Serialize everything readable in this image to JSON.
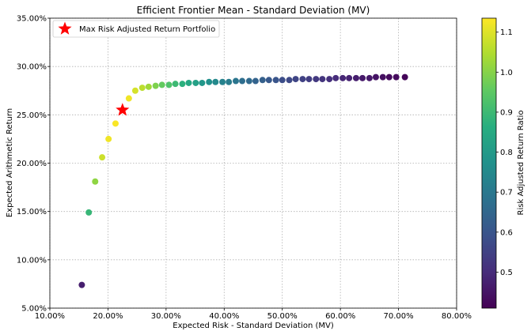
{
  "chart_data": {
    "type": "scatter",
    "title": "Efficient Frontier Mean - Standard Deviation (MV)",
    "xlabel": "Expected Risk - Standard Deviation (MV)",
    "ylabel": "Expected Arithmetic Return",
    "xlim": [
      0.1,
      0.8
    ],
    "ylim": [
      0.05,
      0.35
    ],
    "x_ticks": [
      "10.00%",
      "20.00%",
      "30.00%",
      "40.00%",
      "50.00%",
      "60.00%",
      "70.00%",
      "80.00%"
    ],
    "y_ticks": [
      "5.00%",
      "10.00%",
      "15.00%",
      "20.00%",
      "25.00%",
      "30.00%",
      "35.00%"
    ],
    "grid": true,
    "colorbar": {
      "label": "Risk Adjusted Return Ratio",
      "colormap": "viridis",
      "range": [
        0.41,
        1.135
      ],
      "ticks": [
        "0.5",
        "0.6",
        "0.7",
        "0.8",
        "0.9",
        "1.0",
        "1.1"
      ]
    },
    "legend": {
      "placement": "top-left",
      "label": "Max Risk Adjusted Return Portfolio"
    },
    "highlight": {
      "x": 0.225,
      "y": 0.255,
      "color": "#ff0000",
      "marker": "star"
    },
    "points": [
      {
        "x": 0.155,
        "y": 0.074,
        "c": 0.47
      },
      {
        "x": 0.167,
        "y": 0.149,
        "c": 0.89
      },
      {
        "x": 0.178,
        "y": 0.181,
        "c": 1.01
      },
      {
        "x": 0.19,
        "y": 0.206,
        "c": 1.08
      },
      {
        "x": 0.201,
        "y": 0.225,
        "c": 1.12
      },
      {
        "x": 0.213,
        "y": 0.241,
        "c": 1.13
      },
      {
        "x": 0.236,
        "y": 0.267,
        "c": 1.12
      },
      {
        "x": 0.247,
        "y": 0.275,
        "c": 1.09
      },
      {
        "x": 0.259,
        "y": 0.278,
        "c": 1.06
      },
      {
        "x": 0.27,
        "y": 0.279,
        "c": 1.03
      },
      {
        "x": 0.282,
        "y": 0.28,
        "c": 0.99
      },
      {
        "x": 0.293,
        "y": 0.281,
        "c": 0.96
      },
      {
        "x": 0.305,
        "y": 0.281,
        "c": 0.93
      },
      {
        "x": 0.316,
        "y": 0.282,
        "c": 0.9
      },
      {
        "x": 0.328,
        "y": 0.282,
        "c": 0.87
      },
      {
        "x": 0.339,
        "y": 0.283,
        "c": 0.84
      },
      {
        "x": 0.351,
        "y": 0.283,
        "c": 0.82
      },
      {
        "x": 0.362,
        "y": 0.283,
        "c": 0.79
      },
      {
        "x": 0.374,
        "y": 0.284,
        "c": 0.77
      },
      {
        "x": 0.385,
        "y": 0.284,
        "c": 0.75
      },
      {
        "x": 0.397,
        "y": 0.284,
        "c": 0.73
      },
      {
        "x": 0.408,
        "y": 0.284,
        "c": 0.71
      },
      {
        "x": 0.42,
        "y": 0.285,
        "c": 0.69
      },
      {
        "x": 0.431,
        "y": 0.285,
        "c": 0.67
      },
      {
        "x": 0.443,
        "y": 0.285,
        "c": 0.66
      },
      {
        "x": 0.454,
        "y": 0.285,
        "c": 0.64
      },
      {
        "x": 0.466,
        "y": 0.286,
        "c": 0.63
      },
      {
        "x": 0.477,
        "y": 0.286,
        "c": 0.61
      },
      {
        "x": 0.489,
        "y": 0.286,
        "c": 0.6
      },
      {
        "x": 0.5,
        "y": 0.286,
        "c": 0.58
      },
      {
        "x": 0.512,
        "y": 0.286,
        "c": 0.57
      },
      {
        "x": 0.523,
        "y": 0.287,
        "c": 0.56
      },
      {
        "x": 0.535,
        "y": 0.287,
        "c": 0.55
      },
      {
        "x": 0.546,
        "y": 0.287,
        "c": 0.54
      },
      {
        "x": 0.558,
        "y": 0.287,
        "c": 0.53
      },
      {
        "x": 0.569,
        "y": 0.287,
        "c": 0.52
      },
      {
        "x": 0.581,
        "y": 0.287,
        "c": 0.51
      },
      {
        "x": 0.592,
        "y": 0.288,
        "c": 0.5
      },
      {
        "x": 0.604,
        "y": 0.288,
        "c": 0.49
      },
      {
        "x": 0.615,
        "y": 0.288,
        "c": 0.48
      },
      {
        "x": 0.627,
        "y": 0.288,
        "c": 0.47
      },
      {
        "x": 0.638,
        "y": 0.288,
        "c": 0.46
      },
      {
        "x": 0.65,
        "y": 0.288,
        "c": 0.46
      },
      {
        "x": 0.661,
        "y": 0.289,
        "c": 0.45
      },
      {
        "x": 0.673,
        "y": 0.289,
        "c": 0.44
      },
      {
        "x": 0.684,
        "y": 0.289,
        "c": 0.43
      },
      {
        "x": 0.696,
        "y": 0.289,
        "c": 0.43
      },
      {
        "x": 0.711,
        "y": 0.289,
        "c": 0.42
      }
    ]
  }
}
